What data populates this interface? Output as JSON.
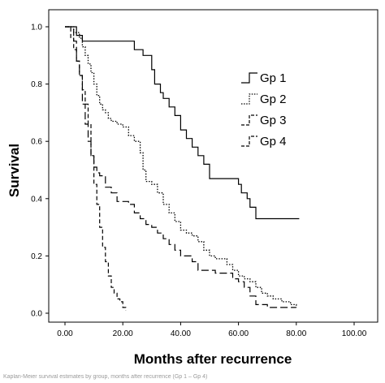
{
  "chart_data": {
    "type": "line",
    "subtype": "kaplan-meier-step",
    "xlabel": "Months after recurrence",
    "ylabel": "Survival",
    "xlim": [
      0,
      100
    ],
    "ylim": [
      0,
      1
    ],
    "x_ticks": [
      "0.00",
      "20.00",
      "40.00",
      "60.00",
      "80.00",
      "100.00"
    ],
    "y_ticks": [
      "0.0",
      "0.2",
      "0.4",
      "0.6",
      "0.8",
      "1.0"
    ],
    "grid": false,
    "legend_position": "top-right",
    "series": [
      {
        "name": "Gp 1",
        "line_style": "solid",
        "x": [
          0,
          4,
          6,
          9,
          24,
          27,
          30,
          31,
          33,
          34,
          36,
          38,
          40,
          42,
          44,
          46,
          48,
          50,
          60,
          61,
          63,
          64,
          66,
          81
        ],
        "y": [
          1.0,
          0.97,
          0.95,
          0.95,
          0.92,
          0.9,
          0.85,
          0.8,
          0.77,
          0.75,
          0.72,
          0.69,
          0.64,
          0.61,
          0.58,
          0.55,
          0.52,
          0.47,
          0.45,
          0.42,
          0.4,
          0.37,
          0.33,
          0.33
        ]
      },
      {
        "name": "Gp 2",
        "line_style": "dotted",
        "x": [
          0,
          3,
          5,
          6,
          7,
          8,
          9,
          10,
          11,
          12,
          13,
          14,
          15,
          16,
          18,
          20,
          22,
          24,
          26,
          27,
          28,
          30,
          32,
          34,
          36,
          38,
          40,
          42,
          44,
          46,
          48,
          50,
          52,
          54,
          56,
          58,
          60,
          62,
          64,
          66,
          68,
          70,
          72,
          75,
          78,
          80
        ],
        "y": [
          1.0,
          0.98,
          0.96,
          0.93,
          0.9,
          0.87,
          0.84,
          0.8,
          0.76,
          0.73,
          0.71,
          0.7,
          0.68,
          0.67,
          0.66,
          0.65,
          0.62,
          0.6,
          0.56,
          0.5,
          0.46,
          0.45,
          0.42,
          0.38,
          0.35,
          0.32,
          0.29,
          0.28,
          0.27,
          0.25,
          0.22,
          0.2,
          0.19,
          0.19,
          0.17,
          0.15,
          0.13,
          0.12,
          0.11,
          0.09,
          0.07,
          0.06,
          0.05,
          0.04,
          0.03,
          0.02
        ]
      },
      {
        "name": "Gp 3",
        "line_style": "long-dash",
        "x": [
          0,
          3,
          4,
          5,
          6,
          7,
          8,
          9,
          10,
          11,
          12,
          14,
          16,
          18,
          20,
          22,
          24,
          26,
          28,
          30,
          32,
          34,
          36,
          38,
          40,
          44,
          46,
          48,
          52,
          56,
          58,
          60,
          62,
          64,
          66,
          70,
          72,
          80
        ],
        "y": [
          1.0,
          0.95,
          0.88,
          0.83,
          0.73,
          0.66,
          0.6,
          0.55,
          0.51,
          0.49,
          0.48,
          0.44,
          0.42,
          0.39,
          0.39,
          0.38,
          0.35,
          0.33,
          0.31,
          0.3,
          0.28,
          0.26,
          0.24,
          0.22,
          0.2,
          0.18,
          0.15,
          0.15,
          0.14,
          0.14,
          0.12,
          0.11,
          0.09,
          0.06,
          0.03,
          0.02,
          0.02,
          0.02
        ]
      },
      {
        "name": "Gp 4",
        "line_style": "dash",
        "x": [
          0,
          2,
          3,
          4,
          5,
          6,
          7,
          8,
          9,
          10,
          11,
          12,
          13,
          14,
          15,
          16,
          17,
          18,
          19,
          20,
          21
        ],
        "y": [
          1.0,
          0.96,
          0.92,
          0.88,
          0.83,
          0.78,
          0.73,
          0.66,
          0.55,
          0.45,
          0.38,
          0.3,
          0.23,
          0.18,
          0.13,
          0.09,
          0.07,
          0.05,
          0.04,
          0.02,
          0.01
        ]
      }
    ]
  },
  "caption": "Kaplan-Meier survival estimates by group, months after recurrence (Gp 1 – Gp 4)"
}
